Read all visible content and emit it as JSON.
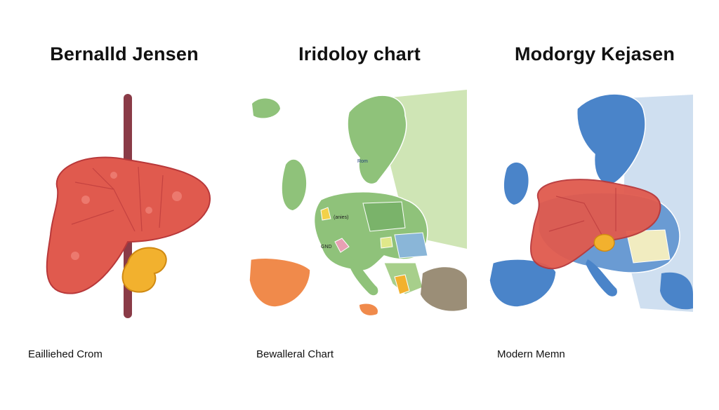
{
  "panels": [
    {
      "title": "Bernalld Jensen",
      "caption": "Eailliehed Crom",
      "illustration": "liver-with-gallbladder"
    },
    {
      "title": "Iridoloy chart",
      "caption": "Bewalleral Chart",
      "illustration": "europe-map-green",
      "map_labels": [
        "Rom",
        "(anies)",
        "GND"
      ]
    },
    {
      "title": "Modorgy Kejasen",
      "caption": "Modern Memn",
      "illustration": "europe-map-blue-with-liver"
    }
  ],
  "colors": {
    "liver": "#e05a4e",
    "liver_dark": "#b8383a",
    "gallbladder": "#f2b12e",
    "vessel": "#8a3b47",
    "map_green": "#8fc27a",
    "map_light_green": "#cfe5b5",
    "map_orange": "#f08a4b",
    "map_blue": "#4a84c9",
    "map_light_blue": "#cfdff0"
  }
}
